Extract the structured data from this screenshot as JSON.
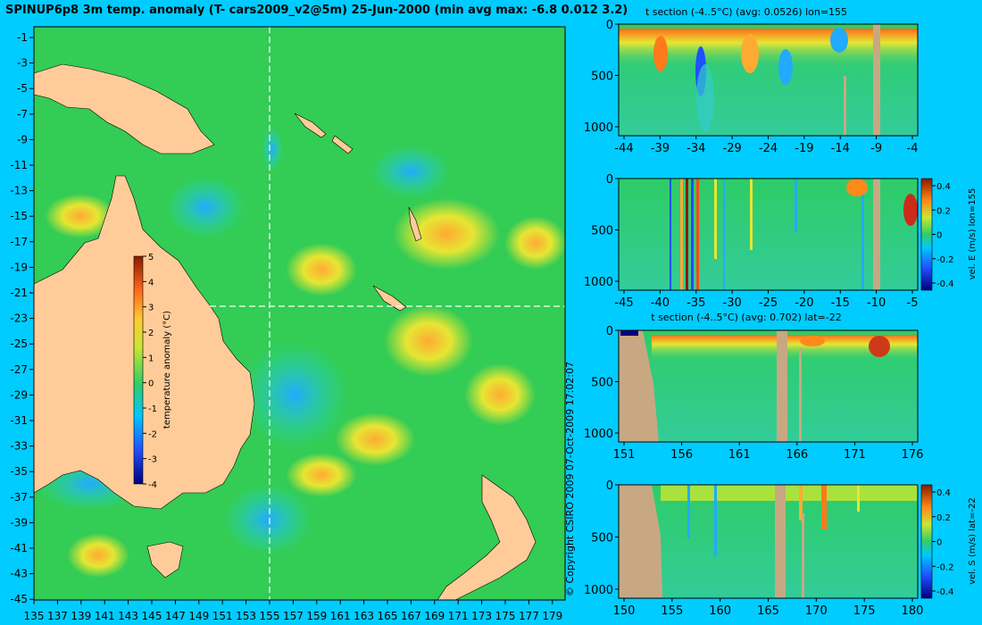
{
  "title": "SPINUP6p8 3m temp. anomaly (T- cars2009_v2@5m) 25-Jun-2000 (min avg max: -6.8 0.012 3.2)",
  "copyright": "© Copyright CSIRO 2009   07-Oct-2009 17:02:07",
  "colors": {
    "background": "#00ccff",
    "land": "#ffcc99",
    "sectionLand": "#c8a882",
    "ocean": "#33cc55"
  },
  "chart_data": [
    {
      "type": "heatmap",
      "name": "map",
      "x_ticks": [
        "135",
        "137",
        "139",
        "141",
        "143",
        "145",
        "147",
        "149",
        "151",
        "153",
        "155",
        "157",
        "159",
        "161",
        "163",
        "165",
        "167",
        "169",
        "171",
        "173",
        "175",
        "177",
        "179"
      ],
      "y_ticks": [
        "-1",
        "-3",
        "-5",
        "-7",
        "-9",
        "-11",
        "-13",
        "-15",
        "-17",
        "-19",
        "-21",
        "-23",
        "-25",
        "-27",
        "-29",
        "-31",
        "-33",
        "-35",
        "-37",
        "-39",
        "-41",
        "-43",
        "-45"
      ],
      "xlim": [
        135,
        180
      ],
      "ylim": [
        -45,
        0
      ],
      "section_lon": 155,
      "section_lat": -22,
      "colorbar": {
        "label": "temperature anomaly (°C)",
        "ticks": [
          "5",
          "4",
          "3",
          "2",
          "1",
          "0",
          "-1",
          "-2",
          "-3",
          "-4"
        ],
        "range": [
          -4,
          5
        ]
      }
    },
    {
      "type": "heatmap",
      "name": "t-section-lon",
      "title": "t section (-4..5°C) (avg: 0.0526) lon=155",
      "x_ticks": [
        "-44",
        "-39",
        "-34",
        "-29",
        "-24",
        "-19",
        "-14",
        "-9",
        "-4"
      ],
      "y_ticks": [
        "0",
        "500",
        "1000"
      ]
    },
    {
      "type": "heatmap",
      "name": "vel-e-section",
      "x_ticks": [
        "-45",
        "-40",
        "-35",
        "-30",
        "-25",
        "-20",
        "-15",
        "-10",
        "-5"
      ],
      "y_ticks": [
        "0",
        "500",
        "1000"
      ],
      "colorbar": {
        "label": "vel. E (m/s) lon=155",
        "ticks": [
          "0.4",
          "0.2",
          "0",
          "-0.2",
          "-0.4"
        ],
        "range": [
          -0.4,
          0.4
        ]
      }
    },
    {
      "type": "heatmap",
      "name": "t-section-lat",
      "title": "t section (-4..5°C) (avg: 0.702) lat=-22",
      "x_ticks": [
        "151",
        "156",
        "161",
        "166",
        "171",
        "176"
      ],
      "y_ticks": [
        "0",
        "500",
        "1000"
      ]
    },
    {
      "type": "heatmap",
      "name": "vel-s-section",
      "x_ticks": [
        "150",
        "155",
        "160",
        "165",
        "170",
        "175",
        "180"
      ],
      "y_ticks": [
        "0",
        "500",
        "1000"
      ],
      "colorbar": {
        "label": "vel. S (m/s) lat=-22",
        "ticks": [
          "0.4",
          "0.2",
          "0",
          "-0.2",
          "-0.4"
        ],
        "range": [
          -0.4,
          0.4
        ]
      }
    }
  ]
}
